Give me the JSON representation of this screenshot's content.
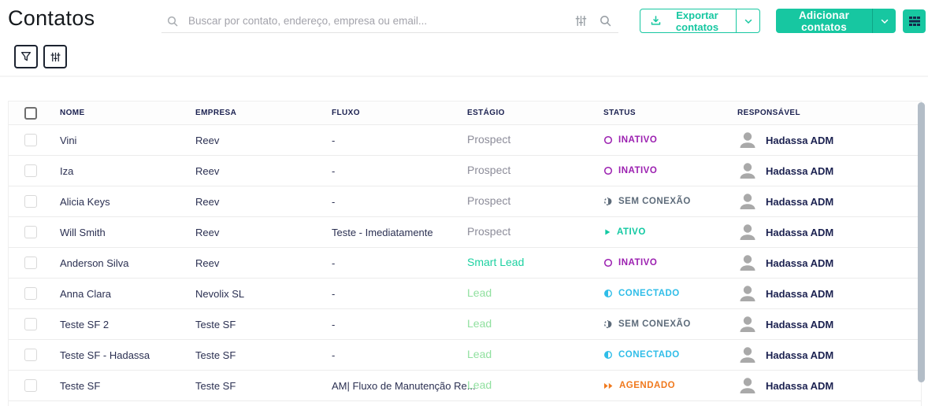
{
  "page": {
    "title": "Contatos"
  },
  "search": {
    "placeholder": "Buscar por contato, endereço, empresa ou email...",
    "left_icon": "search-icon",
    "right_icons": [
      "sliders-icon",
      "search-icon"
    ]
  },
  "toolbar": {
    "filter_button_icon": "funnel-icon",
    "adjust_button_icon": "sliders-icon",
    "export_label": "Exportar contatos",
    "add_label": "Adicionar contatos",
    "view_button_icon": "grid-icon"
  },
  "colors": {
    "accent_teal": "#17c7a1",
    "navy": "#1b2150",
    "status_inactive": "#9b1fb0",
    "status_no_connection": "#5d6b7a",
    "status_active": "#12c9a2",
    "status_connected": "#2fbde8",
    "status_scheduled": "#f0791d",
    "stage_prospect": "#8c8c99",
    "stage_smart_lead": "#1dd1a1",
    "stage_lead": "#90e09f"
  },
  "table": {
    "headers": [
      "NOME",
      "EMPRESA",
      "FLUXO",
      "ESTÁGIO",
      "STATUS",
      "RESPONSÁVEL"
    ],
    "rows": [
      {
        "name": "Vini",
        "company": "Reev",
        "flow": "-",
        "stage": "Prospect",
        "stage_type": "prospect",
        "status": "INATIVO",
        "status_type": "inativo",
        "status_icon": "circle-outline-icon",
        "owner": "Hadassa ADM"
      },
      {
        "name": "Iza",
        "company": "Reev",
        "flow": "-",
        "stage": "Prospect",
        "stage_type": "prospect",
        "status": "INATIVO",
        "status_type": "inativo",
        "status_icon": "circle-outline-icon",
        "owner": "Hadassa ADM"
      },
      {
        "name": "Alicia Keys",
        "company": "Reev",
        "flow": "-",
        "stage": "Prospect",
        "stage_type": "prospect",
        "status": "SEM CONEXÃO",
        "status_type": "sem-conexao",
        "status_icon": "half-dashed-circle-icon",
        "owner": "Hadassa ADM"
      },
      {
        "name": "Will Smith",
        "company": "Reev",
        "flow": "Teste - Imediatamente",
        "stage": "Prospect",
        "stage_type": "prospect",
        "status": "ATIVO",
        "status_type": "ativo",
        "status_icon": "play-icon",
        "owner": "Hadassa ADM"
      },
      {
        "name": "Anderson Silva",
        "company": "Reev",
        "flow": "-",
        "stage": "Smart Lead",
        "stage_type": "smart-lead",
        "status": "INATIVO",
        "status_type": "inativo",
        "status_icon": "circle-outline-icon",
        "owner": "Hadassa ADM"
      },
      {
        "name": "Anna Clara",
        "company": "Nevolix SL",
        "flow": "-",
        "stage": "Lead",
        "stage_type": "lead",
        "status": "CONECTADO",
        "status_type": "conectado",
        "status_icon": "half-filled-circle-icon",
        "owner": "Hadassa ADM"
      },
      {
        "name": "Teste SF 2",
        "company": "Teste SF",
        "flow": "-",
        "stage": "Lead",
        "stage_type": "lead",
        "status": "SEM CONEXÃO",
        "status_type": "sem-conexao",
        "status_icon": "half-dashed-circle-icon",
        "owner": "Hadassa ADM"
      },
      {
        "name": "Teste SF - Hadassa",
        "company": "Teste SF",
        "flow": "-",
        "stage": "Lead",
        "stage_type": "lead",
        "status": "CONECTADO",
        "status_type": "conectado",
        "status_icon": "half-filled-circle-icon",
        "owner": "Hadassa ADM"
      },
      {
        "name": "Teste SF",
        "company": "Teste SF",
        "flow": "AM| Fluxo de Manutenção Re...",
        "stage": "Lead",
        "stage_type": "lead",
        "status": "AGENDADO",
        "status_type": "agendado",
        "status_icon": "fast-forward-icon",
        "owner": "Hadassa ADM"
      }
    ]
  }
}
